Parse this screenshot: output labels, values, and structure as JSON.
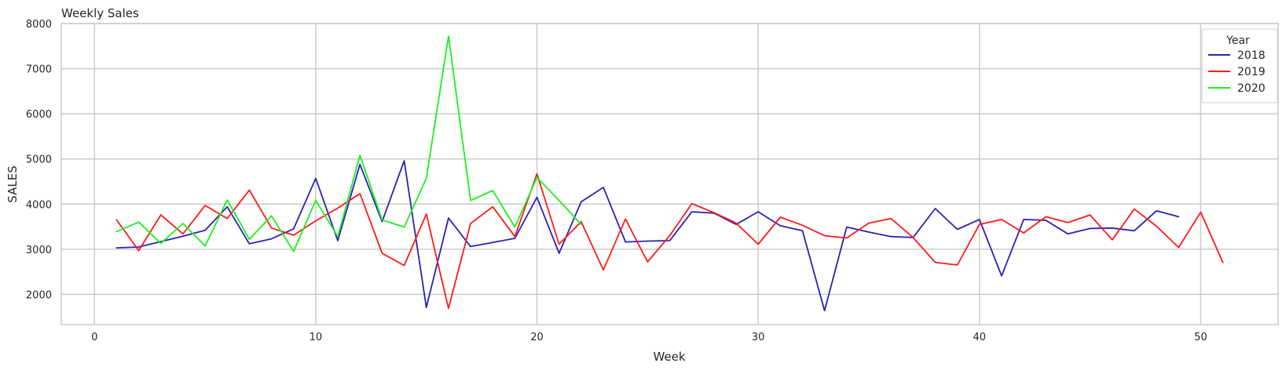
{
  "chart_data": {
    "type": "line",
    "title": "Weekly Sales",
    "xlabel": "Week",
    "ylabel": "SALES",
    "xlim": [
      -1.5,
      53.5
    ],
    "ylim": [
      1330,
      8000
    ],
    "xticks": [
      0,
      10,
      20,
      30,
      40,
      50
    ],
    "yticks": [
      2000,
      3000,
      4000,
      5000,
      6000,
      7000,
      8000
    ],
    "grid": true,
    "legend": {
      "title": "Year",
      "placement": "top-right"
    },
    "series": [
      {
        "name": "2018",
        "color": "#2a22b5",
        "x": [
          1,
          2,
          3,
          4,
          5,
          6,
          7,
          8,
          9,
          10,
          11,
          12,
          13,
          14,
          15,
          16,
          17,
          18,
          19,
          20,
          21,
          22,
          23,
          24,
          25,
          26,
          27,
          28,
          29,
          30,
          31,
          32,
          33,
          34,
          35,
          36,
          37,
          38,
          39,
          40,
          41,
          42,
          43,
          44,
          45,
          46,
          47,
          48,
          49
        ],
        "values": [
          3030,
          3050,
          3170,
          3290,
          3420,
          3940,
          3120,
          3230,
          3450,
          4570,
          3190,
          4880,
          3610,
          4960,
          1710,
          3690,
          3060,
          3150,
          3240,
          4150,
          2910,
          4050,
          4370,
          3160,
          3180,
          3190,
          3830,
          3800,
          3550,
          3830,
          3520,
          3410,
          1640,
          3490,
          3380,
          3280,
          3260,
          3900,
          3440,
          3660,
          2410,
          3660,
          3640,
          3340,
          3460,
          3470,
          3410,
          3850,
          3720
        ]
      },
      {
        "name": "2019",
        "color": "#ff1a1a",
        "x": [
          1,
          2,
          3,
          4,
          5,
          6,
          7,
          8,
          9,
          10,
          11,
          12,
          13,
          14,
          15,
          16,
          17,
          18,
          19,
          20,
          21,
          22,
          23,
          24,
          25,
          26,
          27,
          28,
          29,
          30,
          31,
          32,
          33,
          34,
          35,
          36,
          37,
          38,
          39,
          40,
          41,
          42,
          43,
          44,
          45,
          46,
          47,
          48,
          49,
          50,
          51
        ],
        "values": [
          3650,
          2970,
          3760,
          3340,
          3970,
          3680,
          4310,
          3470,
          3310,
          3630,
          3910,
          4230,
          2910,
          2640,
          3780,
          1690,
          3570,
          3940,
          3280,
          4670,
          3110,
          3610,
          2540,
          3670,
          2720,
          3300,
          4010,
          3810,
          3580,
          3110,
          3710,
          3530,
          3300,
          3250,
          3580,
          3680,
          3260,
          2710,
          2650,
          3550,
          3660,
          3360,
          3720,
          3590,
          3760,
          3210,
          3890,
          3510,
          3040,
          3820,
          2710
        ]
      },
      {
        "name": "2020",
        "color": "#1ef01e",
        "x": [
          1,
          2,
          3,
          4,
          5,
          6,
          7,
          8,
          9,
          10,
          11,
          12,
          13,
          14,
          15,
          16,
          17,
          18,
          19,
          20,
          21,
          22
        ],
        "values": [
          3390,
          3600,
          3130,
          3570,
          3070,
          4090,
          3220,
          3740,
          2950,
          4080,
          3280,
          5080,
          3650,
          3490,
          4570,
          7720,
          4080,
          4300,
          3490,
          4590,
          4080,
          3550
        ]
      }
    ]
  }
}
